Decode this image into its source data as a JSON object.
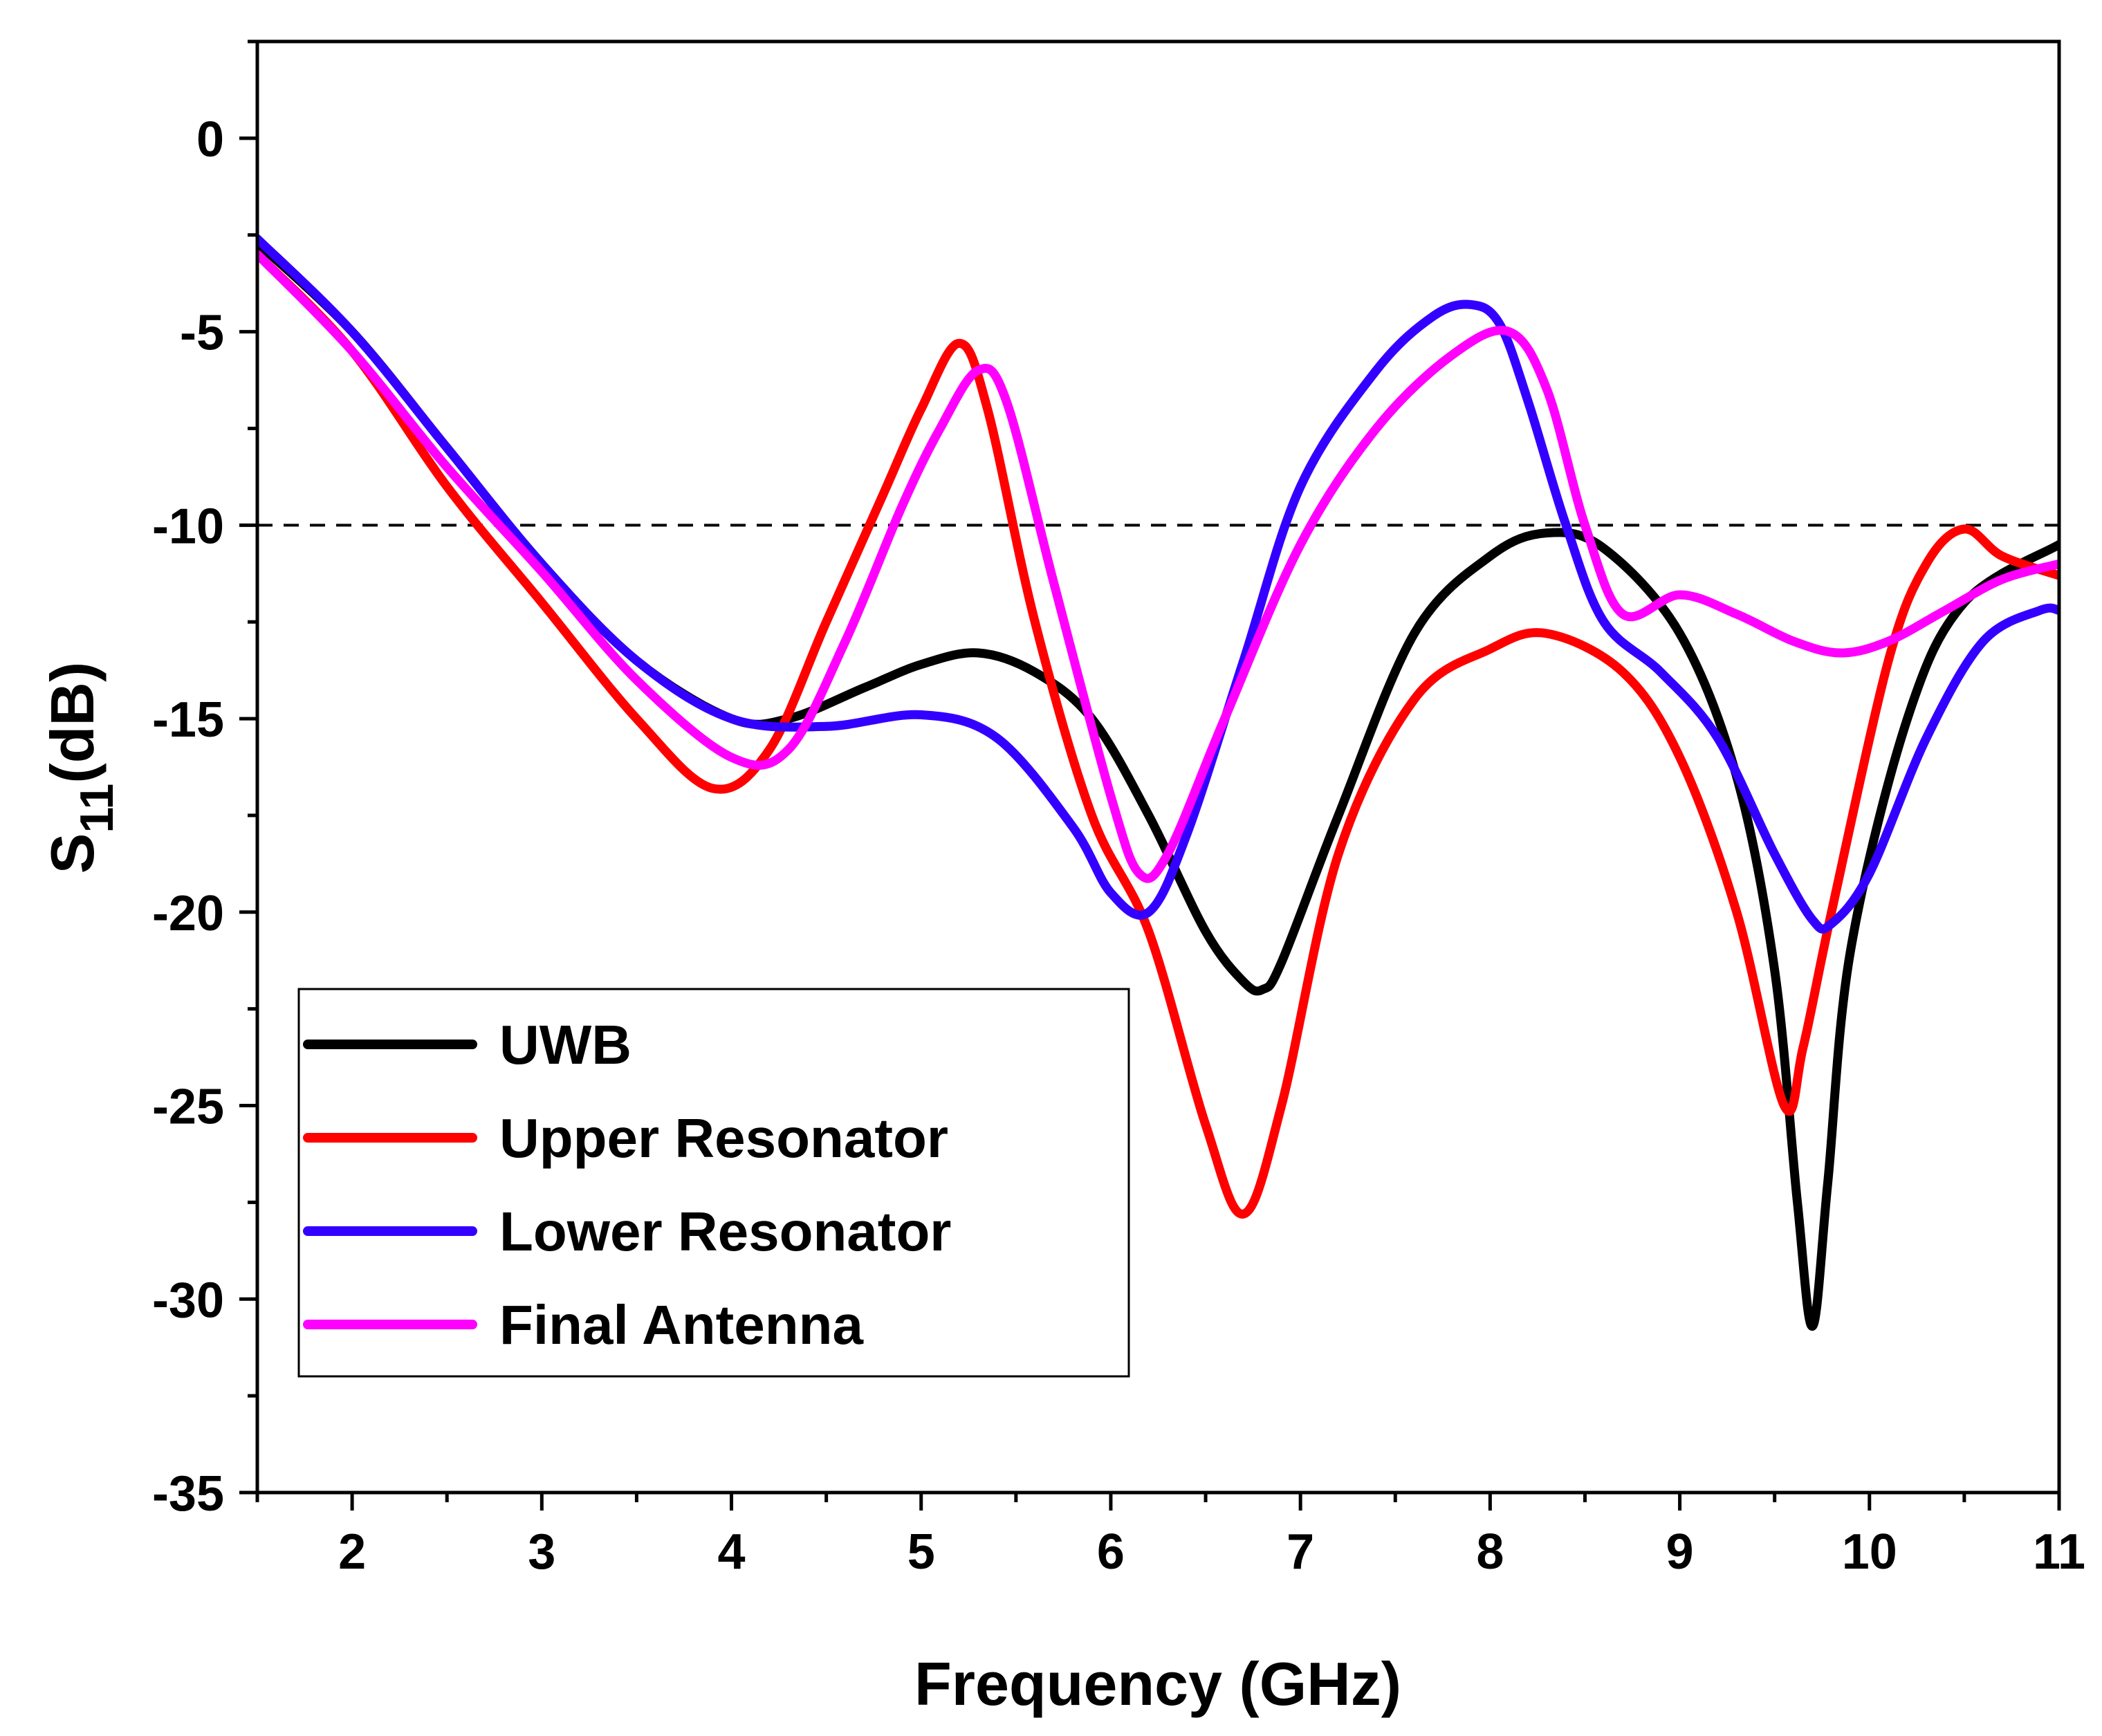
{
  "chart_data": {
    "type": "line",
    "title": "",
    "xlabel": "Frequency (GHz)",
    "ylabel_main": "S",
    "ylabel_sub": "11",
    "ylabel_unit": "(dB)",
    "xlim": [
      1.5,
      11
    ],
    "ylim": [
      -35,
      2.5
    ],
    "xticks": [
      2,
      3,
      4,
      5,
      6,
      7,
      8,
      9,
      10,
      11
    ],
    "xtick_labels": [
      "2",
      "3",
      "4",
      "5",
      "6",
      "7",
      "8",
      "9",
      "10",
      "11"
    ],
    "yticks": [
      0,
      -5,
      -10,
      -15,
      -20,
      -25,
      -30,
      -35
    ],
    "ytick_labels": [
      "0",
      "-5",
      "-10",
      "-15",
      "-20",
      "-25",
      "-30",
      "-35"
    ],
    "reference_line": {
      "y": -10,
      "style": "dashed",
      "color": "#000000"
    },
    "legend_position": "bottom-left",
    "series": [
      {
        "name": "UWB",
        "color": "#000000",
        "x": [
          1.5,
          2.0,
          2.5,
          3.0,
          3.5,
          4.0,
          4.3,
          4.7,
          5.0,
          5.3,
          5.6,
          5.9,
          6.2,
          6.5,
          6.7,
          6.8,
          6.9,
          7.2,
          7.6,
          8.0,
          8.3,
          8.6,
          9.0,
          9.3,
          9.5,
          9.62,
          9.7,
          9.78,
          9.9,
          10.2,
          10.5,
          11.0
        ],
        "y": [
          -2.7,
          -5.0,
          -8.0,
          -11.0,
          -13.5,
          -15.0,
          -15.0,
          -14.2,
          -13.6,
          -13.3,
          -13.8,
          -15.0,
          -17.5,
          -20.5,
          -21.8,
          -22.0,
          -21.3,
          -17.5,
          -12.8,
          -10.8,
          -10.2,
          -10.6,
          -12.8,
          -16.5,
          -21.5,
          -27.5,
          -30.7,
          -27.0,
          -21.0,
          -15.0,
          -12.0,
          -10.5
        ]
      },
      {
        "name": "Upper Resonator",
        "color": "#ff0000",
        "x": [
          1.5,
          2.0,
          2.5,
          3.0,
          3.5,
          3.9,
          4.2,
          4.5,
          4.8,
          5.0,
          5.2,
          5.35,
          5.6,
          5.9,
          6.2,
          6.5,
          6.7,
          6.9,
          7.2,
          7.6,
          8.0,
          8.3,
          8.7,
          9.0,
          9.3,
          9.55,
          9.65,
          9.8,
          10.1,
          10.3,
          10.5,
          10.7,
          11.0
        ],
        "y": [
          -3.0,
          -5.5,
          -9.0,
          -12.0,
          -15.0,
          -16.8,
          -15.8,
          -12.5,
          -9.2,
          -7.0,
          -5.3,
          -7.0,
          -12.5,
          -17.5,
          -20.5,
          -25.5,
          -27.8,
          -25.0,
          -18.5,
          -14.5,
          -13.2,
          -12.8,
          -13.8,
          -16.0,
          -20.0,
          -25.0,
          -23.5,
          -20.0,
          -13.5,
          -11.0,
          -10.1,
          -10.8,
          -11.3
        ]
      },
      {
        "name": "Lower Resonator",
        "color": "#3300ff",
        "x": [
          1.5,
          2.0,
          2.5,
          3.0,
          3.5,
          4.0,
          4.5,
          5.0,
          5.4,
          5.8,
          6.0,
          6.2,
          6.4,
          6.7,
          7.0,
          7.4,
          7.7,
          7.9,
          8.05,
          8.2,
          8.4,
          8.6,
          8.9,
          9.2,
          9.5,
          9.7,
          9.8,
          10.0,
          10.3,
          10.6,
          10.9,
          11.0
        ],
        "y": [
          -2.6,
          -5.0,
          -8.0,
          -11.0,
          -13.5,
          -15.0,
          -15.2,
          -14.9,
          -15.5,
          -17.8,
          -19.5,
          -20.0,
          -18.0,
          -13.5,
          -9.0,
          -6.0,
          -4.6,
          -4.3,
          -4.8,
          -6.8,
          -10.0,
          -12.5,
          -13.8,
          -15.5,
          -18.5,
          -20.2,
          -20.3,
          -19.0,
          -15.5,
          -13.0,
          -12.2,
          -12.2
        ]
      },
      {
        "name": "Final Antenna",
        "color": "#ff00ff",
        "x": [
          1.5,
          2.0,
          2.5,
          3.0,
          3.5,
          4.0,
          4.3,
          4.6,
          4.9,
          5.1,
          5.3,
          5.45,
          5.7,
          6.0,
          6.15,
          6.3,
          6.6,
          7.0,
          7.4,
          7.8,
          8.1,
          8.3,
          8.5,
          8.7,
          9.0,
          9.3,
          9.6,
          9.85,
          10.1,
          10.4,
          10.7,
          11.0
        ],
        "y": [
          -3.0,
          -5.5,
          -8.5,
          -11.2,
          -14.0,
          -16.0,
          -15.8,
          -13.0,
          -9.5,
          -7.5,
          -6.0,
          -6.8,
          -11.5,
          -17.0,
          -19.0,
          -18.5,
          -15.0,
          -10.5,
          -7.5,
          -5.6,
          -5.0,
          -6.5,
          -10.0,
          -12.3,
          -11.8,
          -12.3,
          -13.0,
          -13.3,
          -13.0,
          -12.2,
          -11.4,
          -11.0
        ]
      }
    ]
  }
}
